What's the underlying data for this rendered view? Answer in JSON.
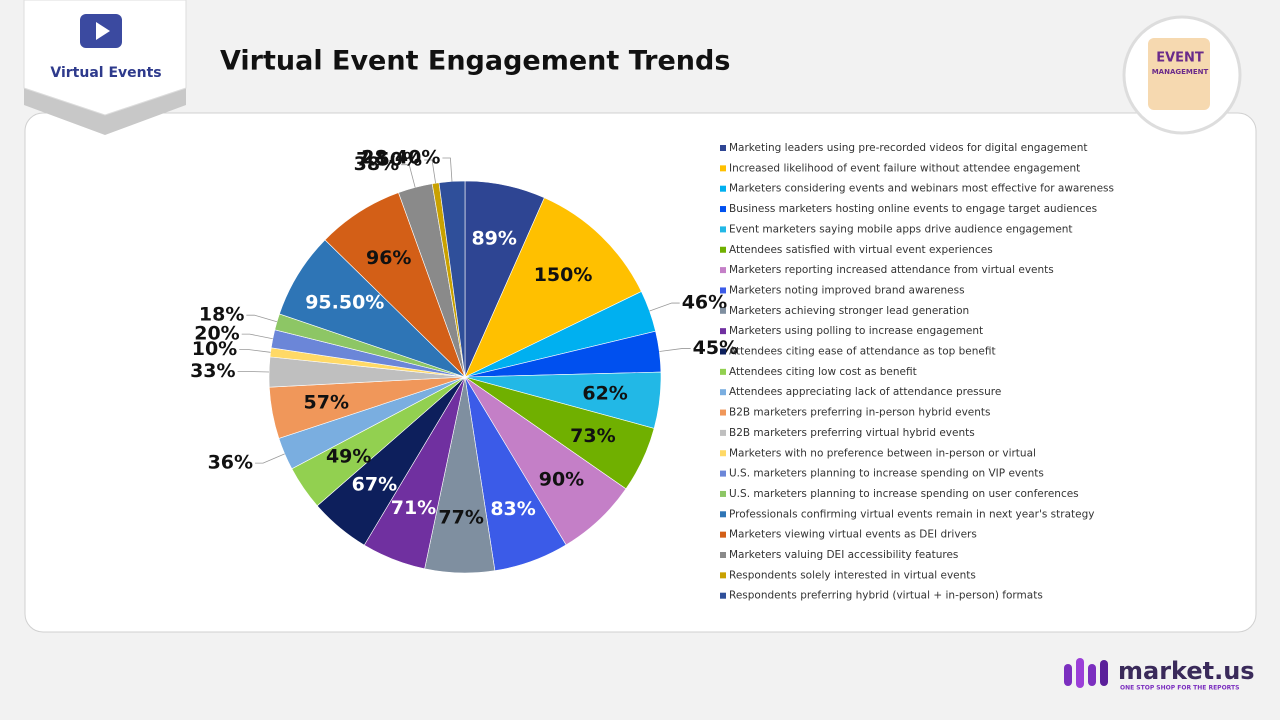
{
  "header": {
    "logo": "Virtual Events",
    "badge": [
      "EVENT",
      "MANAGEMENT"
    ]
  },
  "chart_data": {
    "type": "pie",
    "title": "Virtual Event Engagement Trends",
    "categories": [
      "Marketing leaders using pre-recorded videos for digital engagement",
      "Increased likelihood of event failure without attendee engagement",
      "Marketers considering events and webinars most effective for awareness",
      "Business marketers hosting online events to engage target audiences",
      "Event marketers saying mobile apps drive audience engagement",
      "Attendees satisfied with virtual event experiences",
      "Marketers reporting increased attendance from virtual events",
      "Marketers noting improved brand awareness",
      "Marketers achieving stronger lead generation",
      "Marketers using polling to increase engagement",
      "Attendees citing ease of attendance as top benefit",
      "Attendees citing low cost as benefit",
      "Attendees appreciating lack of attendance pressure",
      "B2B marketers preferring in-person hybrid events",
      "B2B marketers preferring virtual hybrid events",
      "Marketers with no preference between in-person or virtual",
      "U.S. marketers planning to increase spending on VIP events",
      "U.S. marketers planning to increase spending on user conferences",
      "Professionals confirming virtual events remain in next year's strategy",
      "Marketers viewing virtual events as DEI drivers",
      "Marketers valuing DEI accessibility features",
      "Respondents solely interested in virtual events",
      "Respondents preferring hybrid (virtual + in-person) formats"
    ],
    "values": [
      89,
      150,
      46,
      45,
      62,
      73,
      90,
      83,
      77,
      71,
      67,
      49,
      36,
      57,
      33,
      10,
      20,
      18,
      95.5,
      96,
      38,
      7.5,
      28.4
    ],
    "value_labels": [
      "89%",
      "150%",
      "46%",
      "45%",
      "62%",
      "73%",
      "90%",
      "83%",
      "77%",
      "71%",
      "67%",
      "49%",
      "36%",
      "57%",
      "33%",
      "10%",
      "20%",
      "18%",
      "95.50%",
      "96%",
      "38%",
      "7.50%",
      "28.40%"
    ],
    "colors": [
      "#2e4593",
      "#ffc000",
      "#00b0f0",
      "#0050ef",
      "#22b8e6",
      "#70b000",
      "#c47fc7",
      "#3b5be8",
      "#7f8fa0",
      "#7030a0",
      "#0d1f5c",
      "#92d050",
      "#7aaee0",
      "#f0975a",
      "#bfbfbf",
      "#ffd966",
      "#6b86d8",
      "#8dc665",
      "#2e75b6",
      "#d35f17",
      "#8a8a8a",
      "#c9a100",
      "#2f4f9a"
    ],
    "legend": "right"
  },
  "footer": {
    "brand": "market.us",
    "tagline": "ONE STOP SHOP FOR THE REPORTS"
  }
}
